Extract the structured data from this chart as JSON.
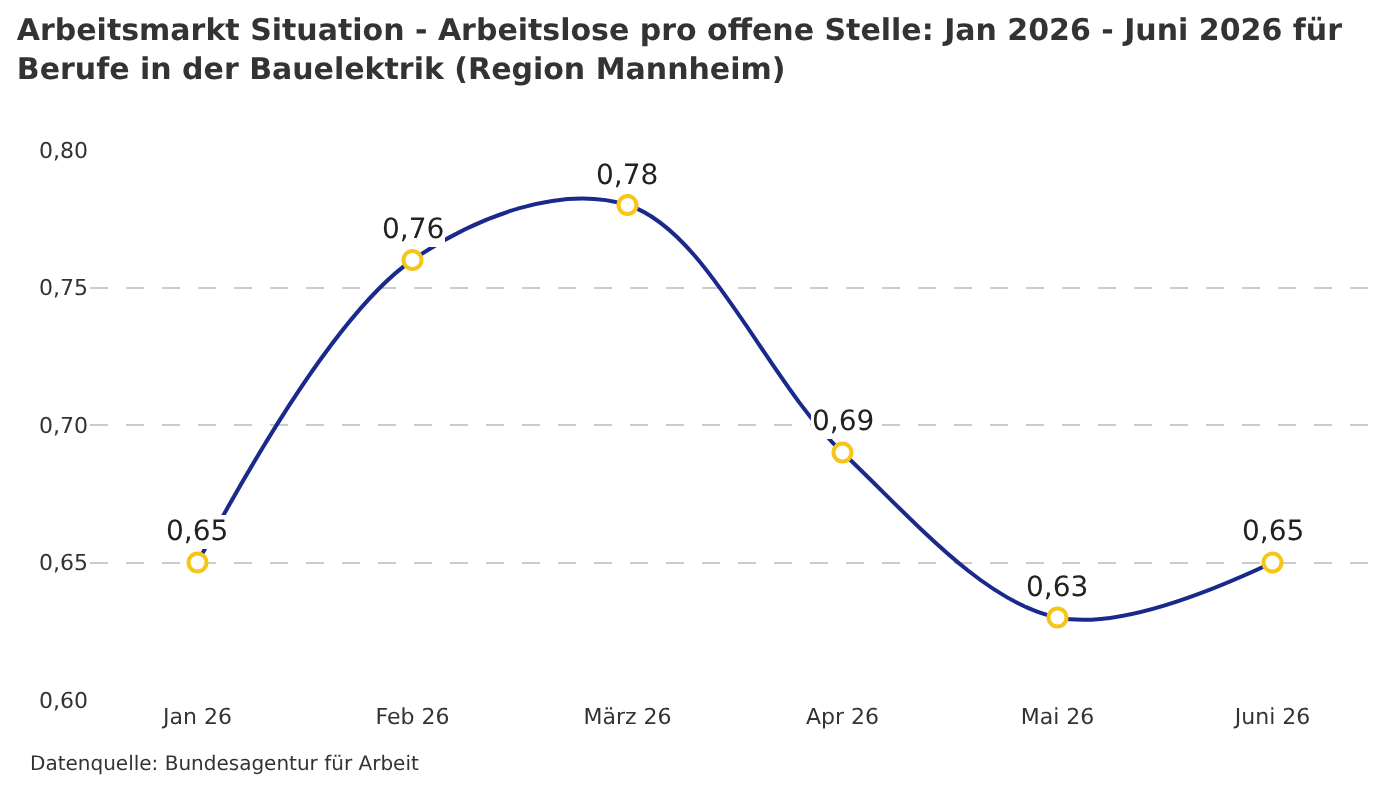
{
  "chart_data": {
    "type": "line",
    "title": "Arbeitsmarkt Situation - Arbeitslose pro offene Stelle: Jan 2026 - Juni 2026 für\nBerufe in der Bauelektrik (Region Mannheim)",
    "categories": [
      "Jan 26",
      "Feb 26",
      "März 26",
      "Apr 26",
      "Mai 26",
      "Juni 26"
    ],
    "series": [
      {
        "color": "#1a2a8c",
        "values": [
          0.65,
          0.76,
          0.78,
          0.69,
          0.63,
          0.65
        ],
        "value_labels": [
          "0,65",
          "0,76",
          "0,78",
          "0,69",
          "0,63",
          "0,65"
        ]
      }
    ],
    "ylim": [
      0.6,
      0.8
    ],
    "yticks": [
      {
        "value": 0.6,
        "label": "0,60"
      },
      {
        "value": 0.65,
        "label": "0,65"
      },
      {
        "value": 0.7,
        "label": "0,70"
      },
      {
        "value": 0.75,
        "label": "0,75"
      },
      {
        "value": 0.8,
        "label": "0,80"
      }
    ],
    "grid": "y",
    "legend": false,
    "marker": "circle",
    "line_style": "solid",
    "annotations": [
      "Datenquelle: Bundesagentur für Arbeit"
    ]
  }
}
